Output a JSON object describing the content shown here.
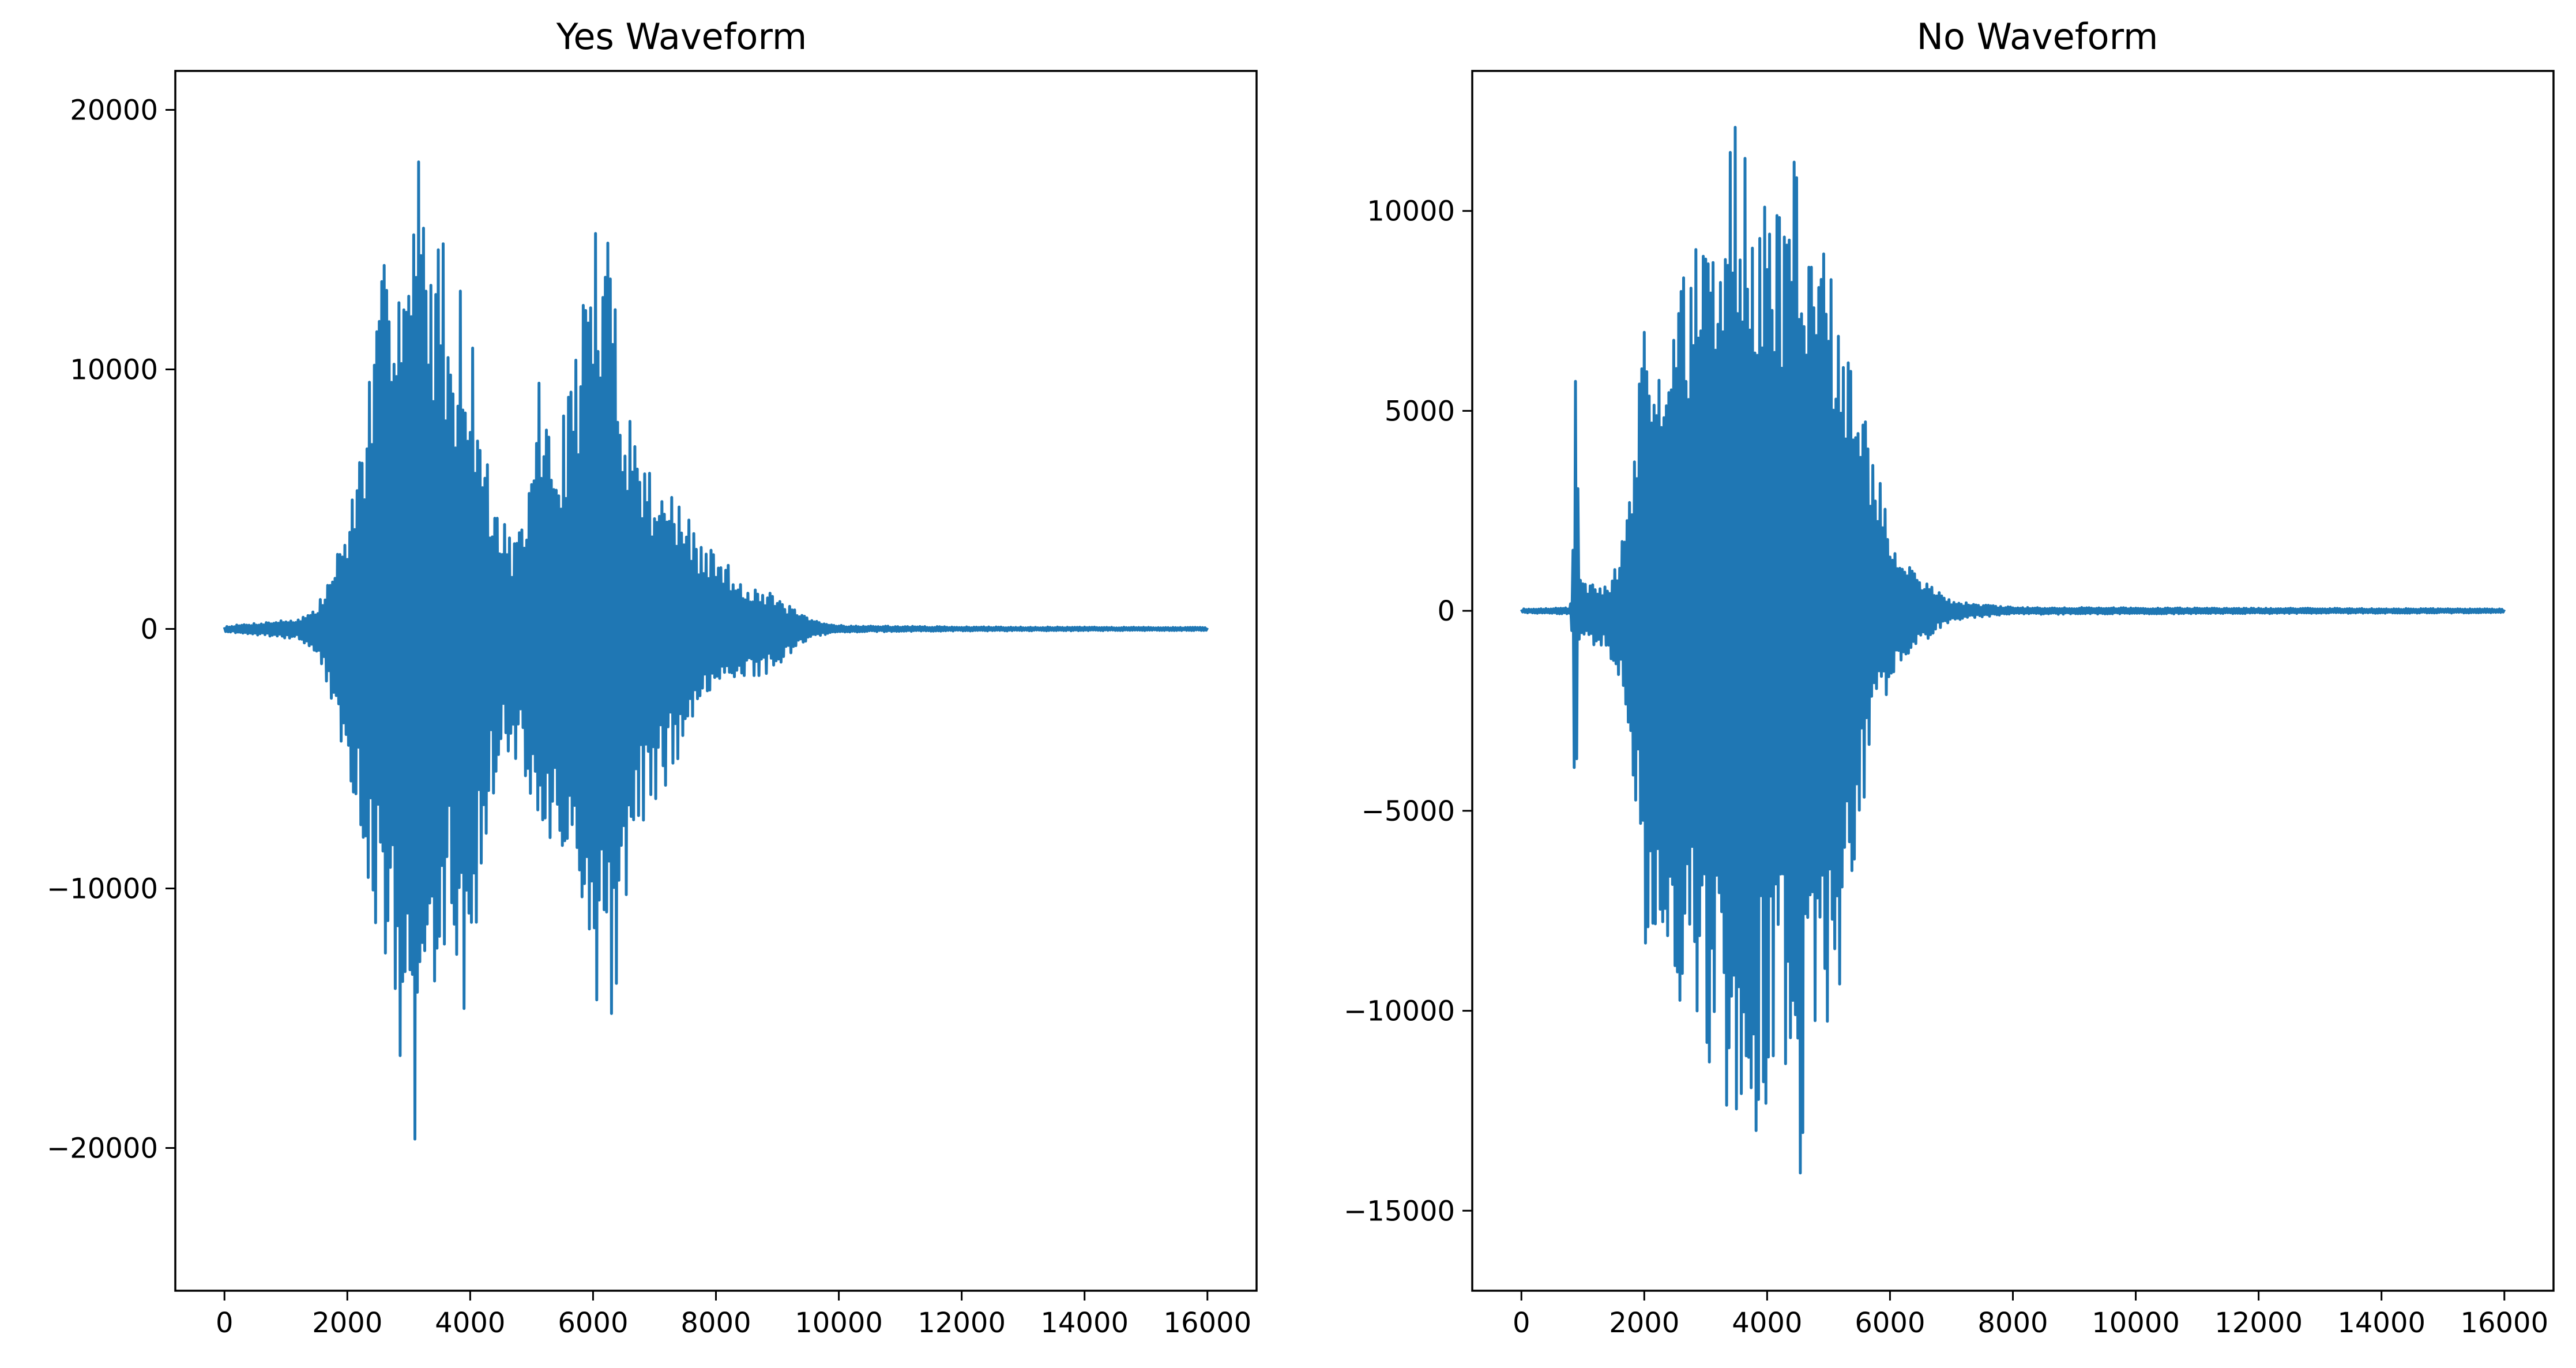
{
  "chart_data": [
    {
      "type": "line",
      "title": "Yes Waveform",
      "xlabel": "",
      "ylabel": "",
      "xlim": [
        -800,
        16800
      ],
      "ylim": [
        -25500,
        21500
      ],
      "xticks": [
        0,
        2000,
        4000,
        6000,
        8000,
        10000,
        12000,
        14000,
        16000
      ],
      "yticks": [
        -20000,
        -10000,
        0,
        10000,
        20000
      ],
      "xtick_labels": [
        "0",
        "2000",
        "4000",
        "6000",
        "8000",
        "10000",
        "12000",
        "14000",
        "16000"
      ],
      "ytick_labels": [
        "−20000",
        "−10000",
        "0",
        "10000",
        "20000"
      ],
      "grid": false,
      "color": "#1f77b4",
      "n_samples": 16000,
      "series": [
        {
          "envelope": [
            [
              0,
              100,
              -100
            ],
            [
              400,
              200,
              -200
            ],
            [
              800,
              300,
              -300
            ],
            [
              1200,
              400,
              -400
            ],
            [
              1500,
              800,
              -900
            ],
            [
              1700,
              2000,
              -2500
            ],
            [
              1900,
              3500,
              -5000
            ],
            [
              2100,
              5500,
              -7000
            ],
            [
              2300,
              9000,
              -9000
            ],
            [
              2500,
              12000,
              -12000
            ],
            [
              2700,
              17000,
              -14500
            ],
            [
              2900,
              16000,
              -17000
            ],
            [
              3000,
              15000,
              -19500
            ],
            [
              3150,
              19000,
              -23500
            ],
            [
              3300,
              15000,
              -15000
            ],
            [
              3500,
              16500,
              -15000
            ],
            [
              3700,
              12000,
              -11000
            ],
            [
              3900,
              14000,
              -15000
            ],
            [
              4100,
              10000,
              -12000
            ],
            [
              4300,
              6000,
              -7500
            ],
            [
              4500,
              4500,
              -5000
            ],
            [
              4700,
              3500,
              -5000
            ],
            [
              4900,
              4000,
              -6000
            ],
            [
              5100,
              10500,
              -8000
            ],
            [
              5300,
              7500,
              -9000
            ],
            [
              5500,
              8000,
              -9000
            ],
            [
              5700,
              11000,
              -11000
            ],
            [
              5900,
              14500,
              -15000
            ],
            [
              6050,
              16000,
              -15500
            ],
            [
              6200,
              14500,
              -11000
            ],
            [
              6300,
              16000,
              -17000
            ],
            [
              6450,
              11000,
              -11500
            ],
            [
              6700,
              7500,
              -8500
            ],
            [
              6900,
              6500,
              -7000
            ],
            [
              7100,
              6000,
              -6500
            ],
            [
              7400,
              5000,
              -5000
            ],
            [
              7700,
              3500,
              -3500
            ],
            [
              8000,
              3000,
              -2500
            ],
            [
              8400,
              2000,
              -2000
            ],
            [
              8800,
              1500,
              -1800
            ],
            [
              9200,
              900,
              -1000
            ],
            [
              9500,
              400,
              -400
            ],
            [
              9800,
              200,
              -200
            ],
            [
              10200,
              120,
              -120
            ],
            [
              12000,
              80,
              -80
            ],
            [
              16000,
              60,
              -60
            ]
          ]
        }
      ]
    },
    {
      "type": "line",
      "title": "No Waveform",
      "xlabel": "",
      "ylabel": "",
      "xlim": [
        -800,
        16800
      ],
      "ylim": [
        -17000,
        13500
      ],
      "xticks": [
        0,
        2000,
        4000,
        6000,
        8000,
        10000,
        12000,
        14000,
        16000
      ],
      "yticks": [
        -15000,
        -10000,
        -5000,
        0,
        5000,
        10000
      ],
      "xtick_labels": [
        "0",
        "2000",
        "4000",
        "6000",
        "8000",
        "10000",
        "12000",
        "14000",
        "16000"
      ],
      "ytick_labels": [
        "−15000",
        "−10000",
        "−5000",
        "0",
        "5000",
        "10000"
      ],
      "grid": false,
      "color": "#1f77b4",
      "n_samples": 16000,
      "series": [
        {
          "envelope": [
            [
              0,
              50,
              -50
            ],
            [
              780,
              80,
              -80
            ],
            [
              830,
              600,
              -600
            ],
            [
              870,
              7500,
              -7000
            ],
            [
              900,
              6500,
              -6000
            ],
            [
              940,
              800,
              -900
            ],
            [
              1050,
              700,
              -700
            ],
            [
              1200,
              700,
              -1000
            ],
            [
              1400,
              600,
              -900
            ],
            [
              1600,
              1500,
              -2000
            ],
            [
              1750,
              3000,
              -3500
            ],
            [
              1900,
              5000,
              -6000
            ],
            [
              2000,
              8400,
              -10300
            ],
            [
              2200,
              7500,
              -9000
            ],
            [
              2400,
              6500,
              -9500
            ],
            [
              2600,
              8500,
              -11000
            ],
            [
              2800,
              9500,
              -10500
            ],
            [
              3000,
              9000,
              -12000
            ],
            [
              3200,
              10000,
              -11500
            ],
            [
              3350,
              12500,
              -13300
            ],
            [
              3550,
              12500,
              -13000
            ],
            [
              3700,
              11000,
              -15000
            ],
            [
              3850,
              10500,
              -12800
            ],
            [
              4100,
              10500,
              -12000
            ],
            [
              4300,
              9500,
              -11800
            ],
            [
              4450,
              12500,
              -15800
            ],
            [
              4700,
              9500,
              -11500
            ],
            [
              4900,
              9000,
              -10500
            ],
            [
              5150,
              8500,
              -10000
            ],
            [
              5400,
              6500,
              -7000
            ],
            [
              5600,
              5000,
              -4500
            ],
            [
              5800,
              3500,
              -2500
            ],
            [
              6000,
              2000,
              -2000
            ],
            [
              6300,
              1200,
              -1200
            ],
            [
              6700,
              600,
              -600
            ],
            [
              7000,
              250,
              -250
            ],
            [
              7500,
              150,
              -150
            ],
            [
              8000,
              90,
              -90
            ],
            [
              16000,
              50,
              -50
            ]
          ]
        }
      ]
    }
  ]
}
